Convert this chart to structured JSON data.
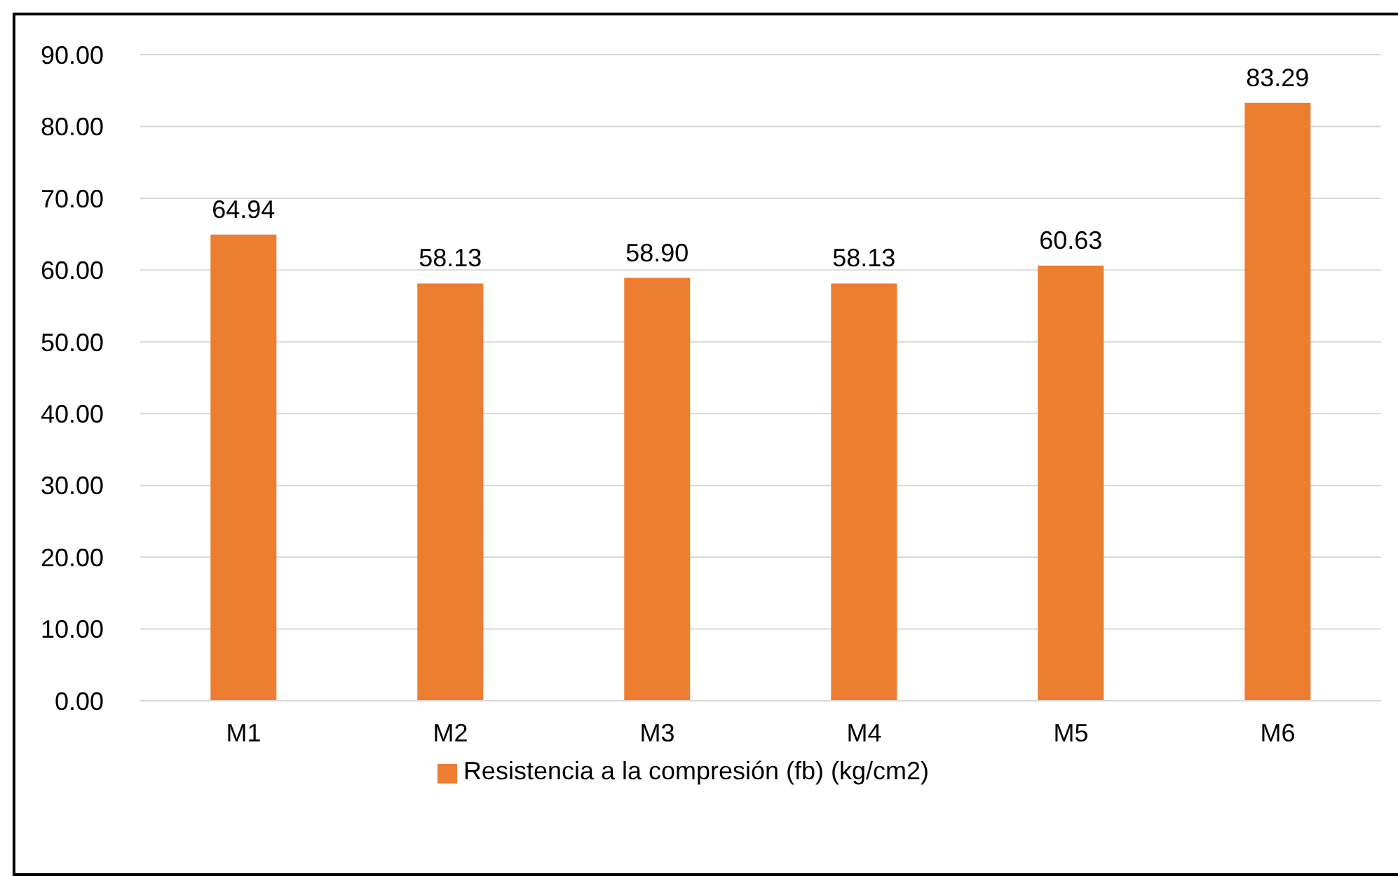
{
  "chart_data": {
    "type": "bar",
    "categories": [
      "M1",
      "M2",
      "M3",
      "M4",
      "M5",
      "M6"
    ],
    "series": [
      {
        "name": "Resistencia a la compresión (fb) (kg/cm2)",
        "color": "#ed7d31",
        "values": [
          64.94,
          58.13,
          58.9,
          58.13,
          60.63,
          83.29
        ],
        "value_labels": [
          "64.94",
          "58.13",
          "58.90",
          "58.13",
          "60.63",
          "83.29"
        ]
      }
    ],
    "ylim": [
      0,
      90
    ],
    "yticks": [
      {
        "value": 0,
        "label": "0.00"
      },
      {
        "value": 10,
        "label": "10.00"
      },
      {
        "value": 20,
        "label": "20.00"
      },
      {
        "value": 30,
        "label": "30.00"
      },
      {
        "value": 40,
        "label": "40.00"
      },
      {
        "value": 50,
        "label": "50.00"
      },
      {
        "value": 60,
        "label": "60.00"
      },
      {
        "value": 70,
        "label": "70.00"
      },
      {
        "value": 80,
        "label": "80.00"
      },
      {
        "value": 90,
        "label": "90.00"
      }
    ],
    "grid": "y",
    "legend": "bottom"
  }
}
